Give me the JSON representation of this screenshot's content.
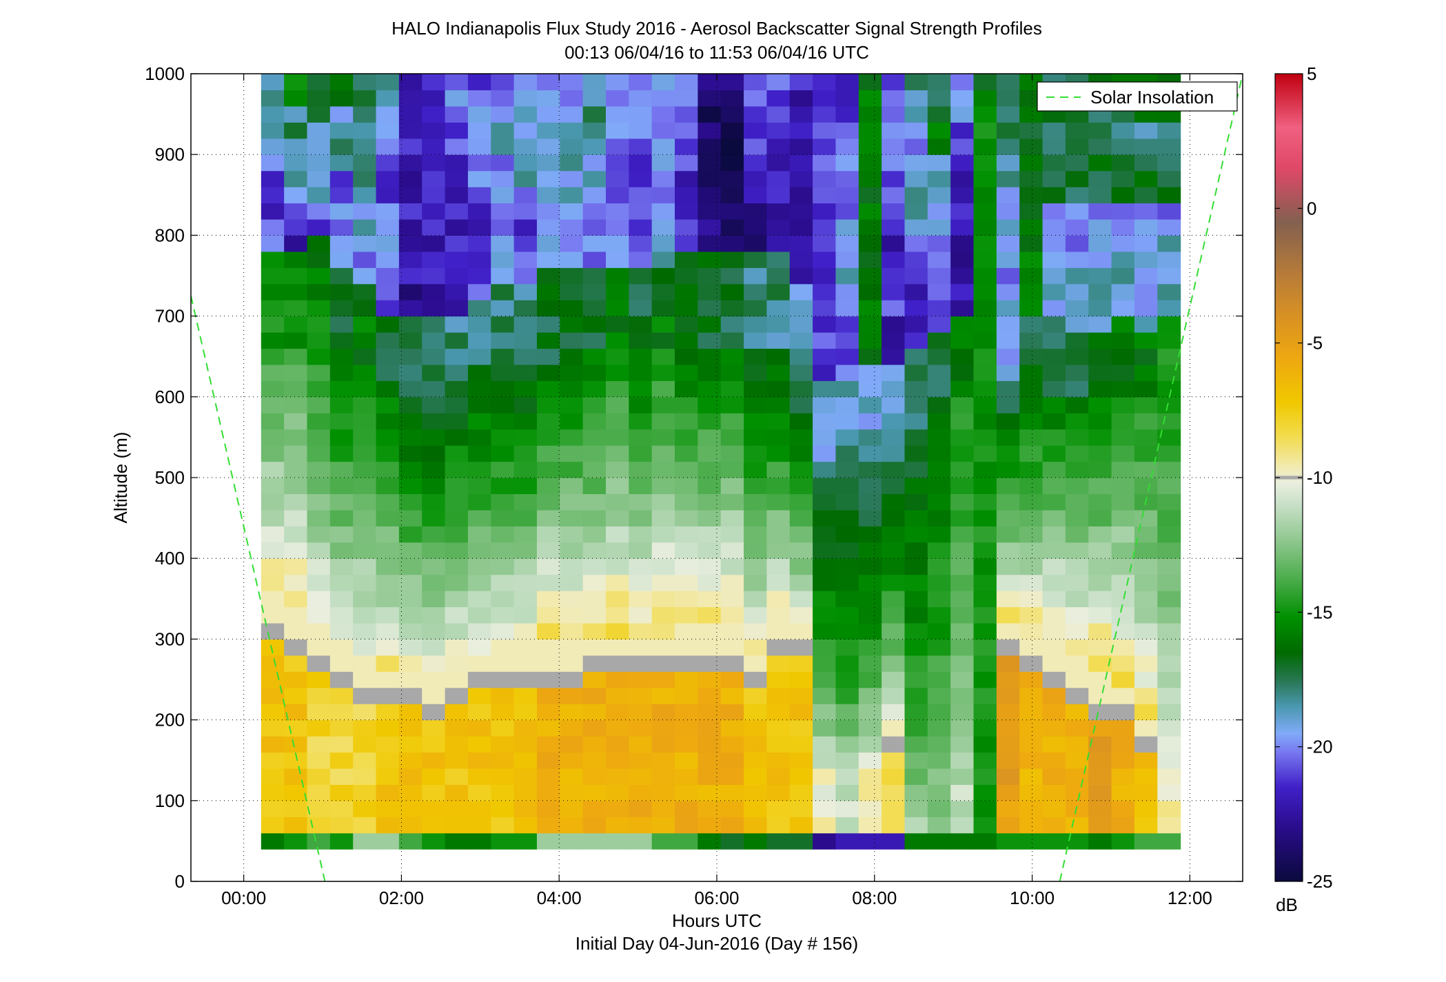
{
  "chart_data": {
    "type": "heatmap",
    "title": "HALO Indianapolis Flux Study 2016 - Aerosol Backscatter Signal Strength Profiles",
    "subtitle": "00:13 06/04/16 to 11:53 06/04/16  UTC",
    "xlabel": "Hours UTC",
    "xlabel2": "Initial Day 04-Jun-2016 (Day # 156)",
    "ylabel": "Altitude (m)",
    "xlim": [
      -0.67,
      12.67
    ],
    "ylim": [
      0,
      1000
    ],
    "grid": true,
    "x_ticks": [
      0,
      2,
      4,
      6,
      8,
      10,
      12
    ],
    "x_tick_labels": [
      "00:00",
      "02:00",
      "04:00",
      "06:00",
      "08:00",
      "10:00",
      "12:00"
    ],
    "y_ticks": [
      0,
      100,
      200,
      300,
      400,
      500,
      600,
      700,
      800,
      900,
      1000
    ],
    "y_tick_labels": [
      "0",
      "100",
      "200",
      "300",
      "400",
      "500",
      "600",
      "700",
      "800",
      "900",
      "1000"
    ],
    "colorbar": {
      "label": "dB",
      "range": [
        -25,
        5
      ],
      "ticks": [
        -25,
        -20,
        -15,
        -10,
        -5,
        0,
        5
      ],
      "tick_labels": [
        "-25",
        "-20",
        "-15",
        "-10",
        "-5",
        "0",
        "5"
      ],
      "gray_mark_value": -10,
      "stops": [
        {
          "v": -25,
          "c": "#0a0a3c"
        },
        {
          "v": -23,
          "c": "#2a0c8c"
        },
        {
          "v": -21.5,
          "c": "#4020c8"
        },
        {
          "v": -20.2,
          "c": "#7878f0"
        },
        {
          "v": -19.5,
          "c": "#80aaf8"
        },
        {
          "v": -18.5,
          "c": "#4a98b0"
        },
        {
          "v": -17.6,
          "c": "#2a7858"
        },
        {
          "v": -16.5,
          "c": "#006a00"
        },
        {
          "v": -15.2,
          "c": "#009000"
        },
        {
          "v": -14,
          "c": "#40a840"
        },
        {
          "v": -12.5,
          "c": "#88c488"
        },
        {
          "v": -11,
          "c": "#c8e0c8"
        },
        {
          "v": -10.2,
          "c": "#eaeede"
        },
        {
          "v": -9.6,
          "c": "#f2eab0"
        },
        {
          "v": -8.5,
          "c": "#f2dc50"
        },
        {
          "v": -7.2,
          "c": "#f0c800"
        },
        {
          "v": -5.6,
          "c": "#eea810"
        },
        {
          "v": -4.2,
          "c": "#dc9420"
        },
        {
          "v": -2.5,
          "c": "#b87c38"
        },
        {
          "v": -0.5,
          "c": "#846050"
        },
        {
          "v": 1.5,
          "c": "#e04868"
        },
        {
          "v": 3,
          "c": "#f06080"
        },
        {
          "v": 5,
          "c": "#c00010"
        }
      ]
    },
    "solar_insolation": {
      "name": "Solar Insolation",
      "color": "#33dd33",
      "legend_position": "top-right",
      "segments": [
        {
          "x": [
            -0.67,
            1.03
          ],
          "y": [
            725,
            0
          ]
        },
        {
          "x": [
            10.35,
            12.67
          ],
          "y": [
            0,
            1000
          ]
        }
      ]
    },
    "heatmap": {
      "x_start": 0.22,
      "x_end": 11.88,
      "y_levels": [
        50,
        70,
        90,
        110,
        130,
        150,
        170,
        190,
        210,
        230,
        250,
        270,
        290,
        310,
        330,
        350,
        370,
        390,
        410,
        430,
        450,
        470,
        490,
        510,
        530,
        550,
        570,
        590,
        610,
        630,
        650,
        670,
        690,
        710,
        730,
        750,
        770,
        790,
        810,
        830,
        850,
        870,
        890,
        910,
        930,
        950,
        970,
        990
      ],
      "level_height": 20,
      "gray_value": -10,
      "bins": [
        {
          "top": 1000,
          "high": [
            -20,
            -22,
            -21,
            -20,
            -19,
            -18
          ]
        },
        {
          "top": 1000,
          "high": [
            -22,
            -20,
            -19,
            -19,
            -18,
            -15
          ]
        },
        {
          "top": 1000,
          "high": [
            -21,
            -19,
            -19,
            -20,
            -18,
            -17
          ]
        },
        {
          "top": 1000,
          "high": [
            -20,
            -20,
            -21,
            -18,
            -19,
            -17
          ]
        },
        {
          "top": 1000,
          "high": [
            -20,
            -19,
            -19,
            -18,
            -18,
            -18
          ]
        },
        {
          "top": 1000,
          "high": [
            -21,
            -20,
            -20,
            -21,
            -20,
            -19
          ]
        },
        {
          "top": 1000,
          "high": [
            -23,
            -22,
            -22,
            -22,
            -22,
            -23
          ]
        },
        {
          "top": 1000,
          "high": [
            -23,
            -22,
            -22,
            -22,
            -22,
            -22
          ]
        },
        {
          "top": 1000,
          "high": [
            -23,
            -22,
            -22,
            -22,
            -21,
            -20
          ]
        },
        {
          "top": 1000,
          "high": [
            -21,
            -22,
            -21,
            -20,
            -20,
            -21
          ]
        },
        {
          "top": 1000,
          "high": [
            -19,
            -20,
            -20,
            -20,
            -19,
            -20
          ]
        },
        {
          "top": 1000,
          "high": [
            -20,
            -21,
            -20,
            -19,
            -19,
            -20
          ]
        },
        {
          "top": 1000,
          "high": [
            -20,
            -20,
            -19,
            -19,
            -19,
            -20
          ]
        },
        {
          "top": 1000,
          "high": [
            -20,
            -20,
            -19,
            -18,
            -19,
            -20
          ]
        },
        {
          "top": 1000,
          "high": [
            -20,
            -20,
            -19,
            -19,
            -18,
            -19
          ]
        },
        {
          "top": 1000,
          "high": [
            -19,
            -21,
            -21,
            -21,
            -20,
            -20
          ]
        },
        {
          "top": 1000,
          "high": [
            -20,
            -21,
            -21,
            -21,
            -20,
            -20
          ]
        },
        {
          "top": 1000,
          "high": [
            -19,
            -20,
            -21,
            -20,
            -20,
            -20
          ]
        },
        {
          "top": 1000,
          "high": [
            -21,
            -22,
            -22,
            -21,
            -20,
            -20
          ]
        },
        {
          "top": 1000,
          "high": [
            -23,
            -24,
            -24,
            -24,
            -24,
            -23
          ]
        },
        {
          "top": 1000,
          "high": [
            -24,
            -24,
            -25,
            -25,
            -24,
            -23
          ]
        },
        {
          "top": 1000,
          "high": [
            -23,
            -23,
            -22,
            -21,
            -21,
            -21
          ]
        },
        {
          "top": 1000,
          "high": [
            -22,
            -22,
            -22,
            -22,
            -21,
            -21
          ]
        },
        {
          "top": 1000,
          "high": [
            -22,
            -22,
            -22,
            -22,
            -22,
            -22
          ]
        },
        {
          "top": 1000,
          "high": [
            -21,
            -22,
            -21,
            -21,
            -21,
            -21
          ]
        },
        {
          "top": 1000,
          "high": [
            -21,
            -19,
            -20,
            -20,
            -20,
            -21
          ]
        },
        {
          "top": 1000,
          "high": [
            -16,
            -16,
            -16,
            -16,
            -16,
            -16
          ]
        },
        {
          "top": 1000,
          "high": [
            -22,
            -21,
            -22,
            -21,
            -20,
            -21
          ]
        },
        {
          "top": 1000,
          "high": [
            -22,
            -22,
            -20,
            -19,
            -20,
            -18
          ]
        },
        {
          "top": 1000,
          "high": [
            -21,
            -21,
            -20,
            -19,
            -16,
            -18
          ]
        },
        {
          "top": 1000,
          "high": [
            -22,
            -23,
            -22,
            -22,
            -21,
            -20
          ]
        },
        {
          "top": 1000,
          "high": [
            -20,
            -19,
            -19,
            -19,
            -18,
            -19
          ]
        },
        {
          "top": 1000,
          "high": [
            -20,
            -19,
            -19,
            -18,
            -18,
            -17
          ]
        },
        {
          "top": 1000,
          "high": [
            -16,
            -16,
            -16,
            -16,
            -17,
            -16
          ]
        },
        {
          "top": 1000,
          "high": [
            -19,
            -19,
            -20,
            -17,
            -18,
            -17
          ]
        }
      ],
      "columns": [
        {
          "surface": -16,
          "bl_top": 320,
          "bl_value": -7,
          "pbl_top": 640,
          "mid_value": -15,
          "mid_top": 780,
          "high": -20
        },
        {
          "surface": -15,
          "bl_top": 300,
          "bl_value": -7,
          "pbl_top": 660,
          "mid_value": -15,
          "mid_top": 780,
          "high": -20
        },
        {
          "surface": -14,
          "bl_top": 270,
          "bl_value": -8,
          "pbl_top": 700,
          "mid_value": -16,
          "mid_top": 800,
          "high": -20
        },
        {
          "surface": -15,
          "bl_top": 260,
          "bl_value": -8,
          "pbl_top": 660,
          "mid_value": -17,
          "mid_top": 760,
          "high": -19
        },
        {
          "surface": -12,
          "bl_top": 240,
          "bl_value": -8,
          "pbl_top": 640,
          "mid_value": -16,
          "mid_top": 740,
          "high": -20
        },
        {
          "surface": -12,
          "bl_top": 230,
          "bl_value": -7,
          "pbl_top": 620,
          "mid_value": -17,
          "mid_top": 700,
          "high": -21
        },
        {
          "surface": -14,
          "bl_top": 230,
          "bl_value": -7,
          "pbl_top": 600,
          "mid_value": -18,
          "mid_top": 700,
          "high": -21
        },
        {
          "surface": -15,
          "bl_top": 220,
          "bl_value": -7,
          "pbl_top": 600,
          "mid_value": -18,
          "mid_top": 700,
          "high": -21
        },
        {
          "surface": -16,
          "bl_top": 230,
          "bl_value": -7,
          "pbl_top": 620,
          "mid_value": -18,
          "mid_top": 700,
          "high": -20
        },
        {
          "surface": -16,
          "bl_top": 250,
          "bl_value": -7,
          "pbl_top": 640,
          "mid_value": -18,
          "mid_top": 720,
          "high": -20
        },
        {
          "surface": -15,
          "bl_top": 260,
          "bl_value": -7,
          "pbl_top": 640,
          "mid_value": -18,
          "mid_top": 730,
          "high": -20
        },
        {
          "surface": -15,
          "bl_top": 260,
          "bl_value": -7,
          "pbl_top": 640,
          "mid_value": -18,
          "mid_top": 740,
          "high": -20
        },
        {
          "surface": -12,
          "bl_top": 260,
          "bl_value": -6,
          "pbl_top": 640,
          "mid_value": -17,
          "mid_top": 750,
          "high": -20
        },
        {
          "surface": -12,
          "bl_top": 260,
          "bl_value": -6,
          "pbl_top": 650,
          "mid_value": -17,
          "mid_top": 760,
          "high": -20
        },
        {
          "surface": -12,
          "bl_top": 270,
          "bl_value": -6,
          "pbl_top": 650,
          "mid_value": -17,
          "mid_top": 760,
          "high": -19
        },
        {
          "surface": -12,
          "bl_top": 270,
          "bl_value": -6,
          "pbl_top": 650,
          "mid_value": -16,
          "mid_top": 760,
          "high": -19
        },
        {
          "surface": -12,
          "bl_top": 270,
          "bl_value": -6,
          "pbl_top": 650,
          "mid_value": -17,
          "mid_top": 760,
          "high": -19
        },
        {
          "surface": -14,
          "bl_top": 270,
          "bl_value": -6,
          "pbl_top": 650,
          "mid_value": -16,
          "mid_top": 760,
          "high": -20
        },
        {
          "surface": -14,
          "bl_top": 280,
          "bl_value": -6,
          "pbl_top": 660,
          "mid_value": -17,
          "mid_top": 780,
          "high": -20
        },
        {
          "surface": -16,
          "bl_top": 280,
          "bl_value": -6,
          "pbl_top": 660,
          "mid_value": -17,
          "mid_top": 780,
          "high": -20
        },
        {
          "surface": -17,
          "bl_top": 280,
          "bl_value": -6,
          "pbl_top": 660,
          "mid_value": -17,
          "mid_top": 780,
          "high": -20
        },
        {
          "surface": -16,
          "bl_top": 250,
          "bl_value": -7,
          "pbl_top": 650,
          "mid_value": -18,
          "mid_top": 770,
          "high": -20
        },
        {
          "surface": -17,
          "bl_top": 300,
          "bl_value": -7,
          "pbl_top": 660,
          "mid_value": -18,
          "mid_top": 780,
          "high": -21
        },
        {
          "surface": -17,
          "bl_top": 290,
          "bl_value": -7,
          "pbl_top": 640,
          "mid_value": -19,
          "mid_top": 740,
          "high": -21
        },
        {
          "surface": -23,
          "bl_top": 140,
          "bl_value": -10,
          "pbl_top": 520,
          "mid_value": -19,
          "mid_top": 620,
          "high": -22
        },
        {
          "surface": -22,
          "bl_top": 130,
          "bl_value": -11,
          "pbl_top": 540,
          "mid_value": -19,
          "mid_top": 640,
          "high": -21
        },
        {
          "surface": -22,
          "bl_top": 150,
          "bl_value": -10,
          "pbl_top": 520,
          "mid_value": -19,
          "mid_top": 640,
          "high": -21
        },
        {
          "surface": -22,
          "bl_top": 170,
          "bl_value": -8,
          "pbl_top": 540,
          "mid_value": -19,
          "mid_top": 640,
          "high": -21
        },
        {
          "surface": -16,
          "bl_top": 80,
          "bl_value": -12,
          "pbl_top": 560,
          "mid_value": -18,
          "mid_top": 660,
          "high": -20
        },
        {
          "surface": -16,
          "bl_top": 80,
          "bl_value": -12,
          "pbl_top": 560,
          "mid_value": -17,
          "mid_top": 680,
          "high": -19
        },
        {
          "surface": -16,
          "bl_top": 120,
          "bl_value": -11,
          "pbl_top": 620,
          "mid_value": -16,
          "mid_top": 700,
          "high": -20
        },
        {
          "surface": -16,
          "bl_top": 60,
          "bl_value": -15,
          "pbl_top": 980,
          "mid_value": -16,
          "mid_top": 1000,
          "high": -16
        },
        {
          "surface": -15,
          "bl_top": 290,
          "bl_value": -5,
          "pbl_top": 620,
          "mid_value": -19,
          "mid_top": 720,
          "high": -21
        },
        {
          "surface": -15,
          "bl_top": 270,
          "bl_value": -6,
          "pbl_top": 600,
          "mid_value": -17,
          "mid_top": 700,
          "high": -20
        },
        {
          "surface": -15,
          "bl_top": 260,
          "bl_value": -6,
          "pbl_top": 600,
          "mid_value": -17,
          "mid_top": 700,
          "high": -20
        },
        {
          "surface": -15,
          "bl_top": 240,
          "bl_value": -6,
          "pbl_top": 600,
          "mid_value": -17,
          "mid_top": 680,
          "high": -21
        },
        {
          "surface": -16,
          "bl_top": 220,
          "bl_value": -5,
          "pbl_top": 600,
          "mid_value": -17,
          "mid_top": 680,
          "high": -21
        },
        {
          "surface": -15,
          "bl_top": 210,
          "bl_value": -6,
          "pbl_top": 600,
          "mid_value": -16,
          "mid_top": 700,
          "high": -20
        },
        {
          "surface": -14,
          "bl_top": 170,
          "bl_value": -7,
          "pbl_top": 600,
          "mid_value": -16,
          "mid_top": 680,
          "high": -19
        },
        {
          "surface": -14,
          "bl_top": 100,
          "bl_value": -9,
          "pbl_top": 660,
          "mid_value": -16,
          "mid_top": 700,
          "high": -18
        }
      ]
    }
  }
}
